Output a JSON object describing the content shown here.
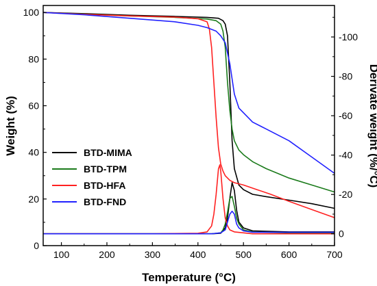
{
  "chart_data": {
    "type": "line",
    "xlabel": "Temperature (°C)",
    "ylabel_left": "Weight (%)",
    "ylabel_right": "Derivate weight (%/°C)",
    "xlim": [
      60,
      700
    ],
    "ylim_left": [
      0,
      103
    ],
    "ylim_right": [
      6,
      -116
    ],
    "x_ticks": [
      100,
      200,
      300,
      400,
      500,
      600,
      700
    ],
    "y_ticks_left": [
      0,
      20,
      40,
      60,
      80,
      100
    ],
    "y_ticks_right": [
      0,
      -20,
      -40,
      -60,
      -80,
      -100
    ],
    "grid": false,
    "legend_position": "lower-left",
    "series": [
      {
        "name": "BTD-MIMA",
        "color": "#000000",
        "axis": "left",
        "kind": "weight",
        "x": [
          60,
          150,
          250,
          350,
          420,
          445,
          455,
          460,
          465,
          470,
          475,
          480,
          490,
          500,
          520,
          550,
          600,
          650,
          700
        ],
        "y": [
          100,
          99.5,
          98.8,
          98.3,
          97.9,
          97.5,
          96.5,
          95,
          90,
          70,
          45,
          33,
          26,
          24,
          22,
          21,
          19.5,
          18,
          16
        ]
      },
      {
        "name": "BTD-TPM",
        "color": "#1a7a1a",
        "axis": "left",
        "kind": "weight",
        "x": [
          60,
          150,
          250,
          350,
          420,
          440,
          450,
          455,
          460,
          465,
          470,
          475,
          480,
          490,
          500,
          520,
          550,
          600,
          650,
          700
        ],
        "y": [
          100,
          99.3,
          98.5,
          97.9,
          97.2,
          96.5,
          95,
          92,
          85,
          70,
          58,
          50,
          45,
          41,
          39,
          36,
          33,
          29,
          26,
          23
        ]
      },
      {
        "name": "BTD-HFA",
        "color": "#ff2020",
        "axis": "left",
        "kind": "weight",
        "x": [
          60,
          150,
          250,
          350,
          400,
          420,
          425,
          430,
          435,
          440,
          445,
          450,
          455,
          460,
          470,
          480,
          500,
          530,
          560,
          600,
          650,
          700
        ],
        "y": [
          100,
          99.2,
          98.5,
          98,
          97.3,
          96,
          93,
          85,
          70,
          55,
          42,
          35,
          32,
          30,
          28,
          27,
          26,
          24,
          22,
          19,
          15.5,
          12
        ]
      },
      {
        "name": "BTD-FND",
        "color": "#2020ff",
        "axis": "left",
        "kind": "weight",
        "x": [
          60,
          150,
          250,
          350,
          400,
          420,
          440,
          450,
          460,
          470,
          480,
          490,
          500,
          520,
          550,
          600,
          650,
          700
        ],
        "y": [
          100,
          99,
          97.5,
          96,
          94.5,
          93.5,
          92,
          90,
          87,
          78,
          65,
          59,
          57,
          53,
          50,
          45,
          38,
          31
        ]
      },
      {
        "name": "BTD-MIMA",
        "color": "#000000",
        "axis": "right",
        "kind": "derivative",
        "x": [
          60,
          300,
          430,
          450,
          460,
          465,
          470,
          475,
          480,
          485,
          490,
          500,
          520,
          600,
          700
        ],
        "y": [
          0,
          0,
          0,
          -0.3,
          -3,
          -8,
          -18,
          -26,
          -22,
          -12,
          -6,
          -3,
          -1.5,
          -1,
          -1
        ]
      },
      {
        "name": "BTD-TPM",
        "color": "#1a7a1a",
        "axis": "right",
        "kind": "derivative",
        "x": [
          60,
          300,
          430,
          450,
          455,
          460,
          465,
          470,
          475,
          480,
          485,
          490,
          500,
          520,
          600,
          700
        ],
        "y": [
          0,
          0,
          0,
          -0.5,
          -2,
          -5,
          -11,
          -18,
          -19,
          -14,
          -8,
          -5,
          -2,
          -1,
          -0.5,
          -0.5
        ]
      },
      {
        "name": "BTD-HFA",
        "color": "#ff2020",
        "axis": "right",
        "kind": "derivative",
        "x": [
          60,
          300,
          400,
          420,
          430,
          435,
          440,
          445,
          448,
          450,
          455,
          460,
          465,
          470,
          480,
          500,
          520,
          600,
          700
        ],
        "y": [
          0,
          0,
          -0.3,
          -1,
          -4,
          -10,
          -20,
          -33,
          -35,
          -32,
          -18,
          -8,
          -4,
          -2,
          -1,
          -0.5,
          0,
          0,
          0
        ]
      },
      {
        "name": "BTD-FND",
        "color": "#2020ff",
        "axis": "right",
        "kind": "derivative",
        "x": [
          60,
          300,
          430,
          450,
          460,
          465,
          470,
          475,
          480,
          485,
          490,
          500,
          520,
          600,
          700
        ],
        "y": [
          0,
          0,
          0,
          -0.5,
          -2,
          -6,
          -10,
          -11.5,
          -10,
          -5,
          -3,
          -1.5,
          -0.8,
          -0.8,
          -0.8
        ]
      }
    ]
  }
}
